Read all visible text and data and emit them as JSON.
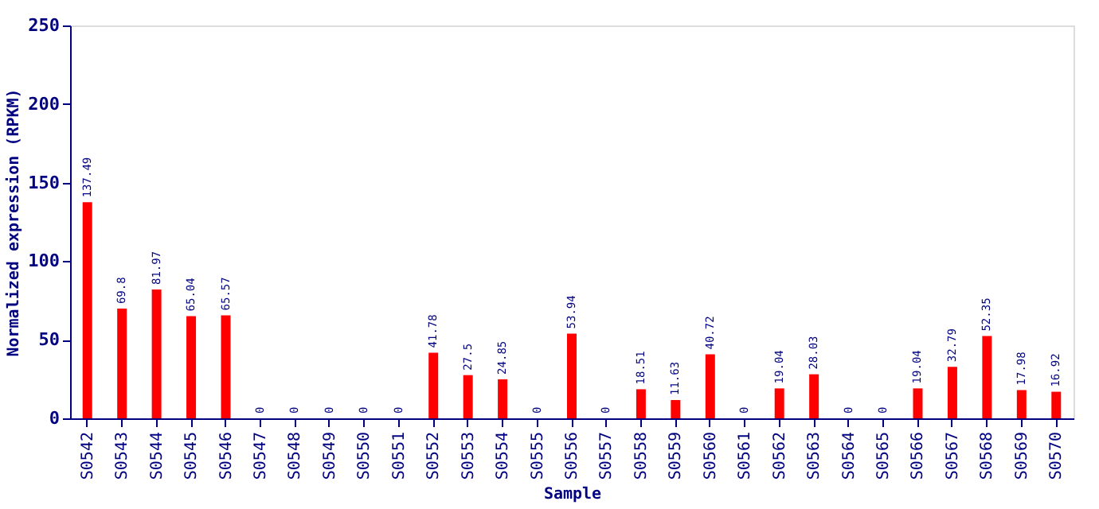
{
  "chart_data": {
    "type": "bar",
    "xlabel": "Sample",
    "ylabel": "Normalized expression (RPKM)",
    "categories": [
      "S0542",
      "S0543",
      "S0544",
      "S0545",
      "S0546",
      "S0547",
      "S0548",
      "S0549",
      "S0550",
      "S0551",
      "S0552",
      "S0553",
      "S0554",
      "S0555",
      "S0556",
      "S0557",
      "S0558",
      "S0559",
      "S0560",
      "S0561",
      "S0562",
      "S0563",
      "S0564",
      "S0565",
      "S0566",
      "S0567",
      "S0568",
      "S0569",
      "S0570"
    ],
    "values": [
      137.49,
      69.8,
      81.97,
      65.04,
      65.57,
      0,
      0,
      0,
      0,
      0,
      41.78,
      27.5,
      24.85,
      0,
      53.94,
      0,
      18.51,
      11.63,
      40.72,
      0,
      19.04,
      28.03,
      0,
      0,
      19.04,
      32.79,
      52.35,
      17.98,
      16.92
    ],
    "color": "#ff0000",
    "ylim": [
      0,
      250
    ],
    "yticks": [
      0,
      50,
      100,
      150,
      200,
      250
    ],
    "data_labels": true,
    "grid": false
  }
}
